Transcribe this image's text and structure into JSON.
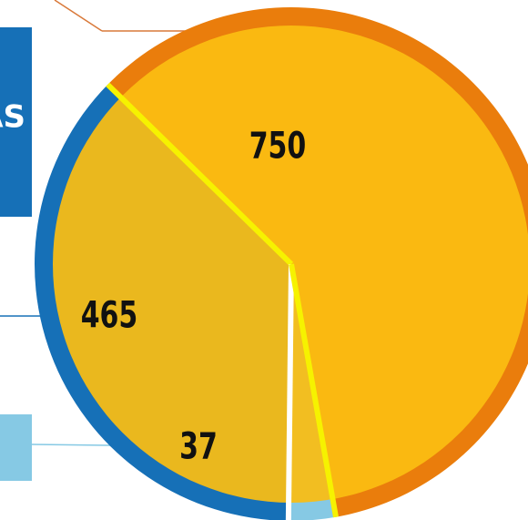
{
  "chart_data": {
    "type": "pie",
    "annotations": [
      "AS"
    ],
    "categories": [
      null,
      null,
      null
    ],
    "values": [
      750,
      465,
      37
    ],
    "colors": [
      "#ea7d0c",
      "#1670b7",
      "#86c9e4"
    ]
  }
}
